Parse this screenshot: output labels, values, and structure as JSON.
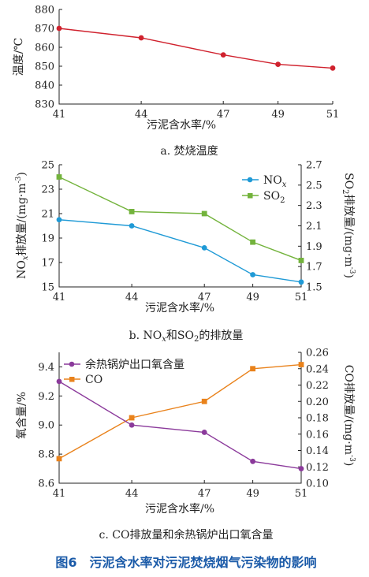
{
  "colors": {
    "temperature": "#d0222e",
    "no": "#1f9ad6",
    "so2": "#73b33c",
    "oxygen": "#8b3a9b",
    "co": "#e9821b",
    "figure_caption": "#1a5aa8"
  },
  "figure_caption": "图6　污泥含水率对污泥焚烧烟气污染物的影响",
  "panels": {
    "a": {
      "caption": "a. 焚烧温度",
      "xlabel": "污泥含水率/%",
      "ylabel": "温度/℃"
    },
    "b": {
      "caption_pre": "b. NO",
      "caption_x": "x",
      "caption_mid": "和SO",
      "caption_2": "2",
      "caption_post": "的排放量",
      "xlabel": "污泥含水率/%",
      "ylabel_left_pre": "NO",
      "ylabel_left_x": "x",
      "ylabel_left_post": "排放量/(mg·m",
      "ylabel_right_pre": "SO",
      "ylabel_right_2": "2",
      "ylabel_right_post": "排放量/(mg·m",
      "ylabel_exp": "-3",
      "ylabel_close": ")",
      "legend_no_pre": "NO",
      "legend_no_x": "x",
      "legend_so_pre": "SO",
      "legend_so_2": "2"
    },
    "c": {
      "caption": "c. CO排放量和余热锅炉出口氧含量",
      "xlabel": "污泥含水率/%",
      "ylabel_left": "氧含量/%",
      "ylabel_right_pre": "CO排放量/(mg·m",
      "ylabel_exp": "-3",
      "ylabel_close": ")",
      "legend_o2": "余热锅炉出口氧含量",
      "legend_co": "CO"
    }
  },
  "chart_data": [
    {
      "type": "line",
      "x": [
        41,
        44,
        47,
        49,
        51
      ],
      "xlabel": "污泥含水率/%",
      "ylabel": "温度/℃",
      "xticks": [
        "41",
        "44",
        "47",
        "49",
        "51"
      ],
      "yticks": [
        "830",
        "840",
        "850",
        "860",
        "870",
        "880"
      ],
      "ylim": [
        830,
        880
      ],
      "series": [
        {
          "values": [
            870,
            865,
            856,
            851,
            849
          ]
        }
      ]
    },
    {
      "type": "line",
      "x": [
        41,
        44,
        47,
        49,
        51
      ],
      "xlabel": "污泥含水率/%",
      "xticks": [
        "41",
        "44",
        "47",
        "49",
        "51"
      ],
      "yticks_left": [
        "15",
        "17",
        "19",
        "21",
        "23",
        "25"
      ],
      "yticks_right": [
        "1.5",
        "1.7",
        "1.9",
        "2.1",
        "2.3",
        "2.5",
        "2.7"
      ],
      "ylim_left": [
        15,
        25
      ],
      "ylim_right": [
        1.5,
        2.7
      ],
      "legend_position": "top-right",
      "series": [
        {
          "name": "NOx",
          "axis": "left",
          "values": [
            20.5,
            20.0,
            18.2,
            16.0,
            15.4
          ]
        },
        {
          "name": "SO2",
          "axis": "right",
          "values": [
            2.58,
            2.24,
            2.22,
            1.94,
            1.76
          ]
        }
      ]
    },
    {
      "type": "line",
      "x": [
        41,
        44,
        47,
        49,
        51
      ],
      "xlabel": "污泥含水率/%",
      "xticks": [
        "41",
        "44",
        "47",
        "49",
        "51"
      ],
      "yticks_left": [
        "8.6",
        "8.8",
        "9.0",
        "9.2",
        "9.4"
      ],
      "yticks_right": [
        "0.10",
        "0.12",
        "0.14",
        "0.16",
        "0.18",
        "0.20",
        "0.22",
        "0.24",
        "0.26"
      ],
      "ylim_left": [
        8.6,
        9.5
      ],
      "ylim_right": [
        0.1,
        0.26
      ],
      "legend_position": "top-left",
      "series": [
        {
          "name": "余热锅炉出口氧含量",
          "axis": "left",
          "values": [
            9.3,
            9.0,
            8.95,
            8.75,
            8.7
          ]
        },
        {
          "name": "CO",
          "axis": "right",
          "values": [
            0.13,
            0.18,
            0.2,
            0.24,
            0.245
          ]
        }
      ]
    }
  ]
}
